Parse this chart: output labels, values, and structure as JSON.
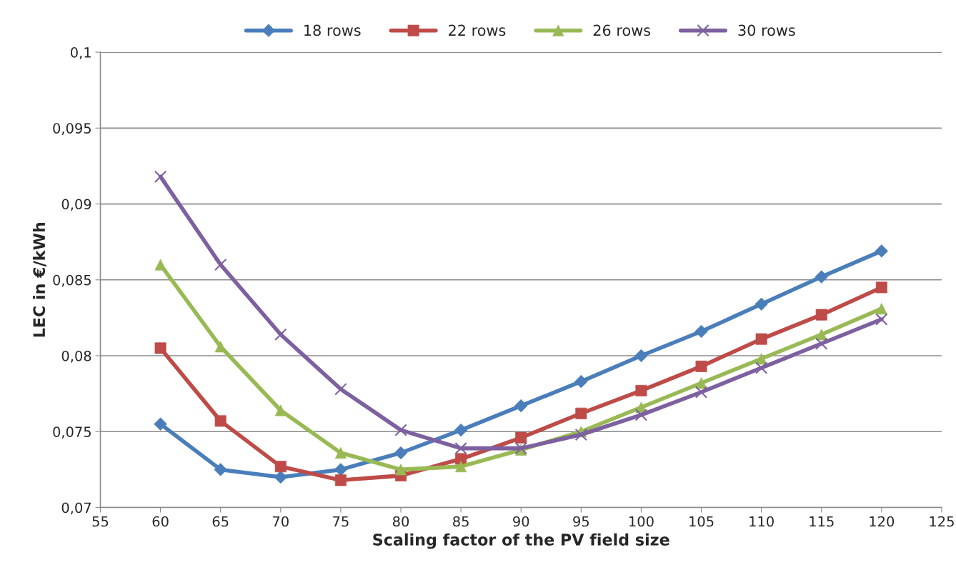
{
  "chart_data": {
    "type": "line",
    "xlabel": "Scaling factor of the PV field size",
    "ylabel": "LEC in €/kWh",
    "x": [
      60,
      65,
      70,
      75,
      80,
      85,
      90,
      95,
      100,
      105,
      110,
      115,
      120
    ],
    "series": [
      {
        "name": "18 rows",
        "color": "#4a7ebb",
        "marker": "diamond",
        "values": [
          0.0755,
          0.0725,
          0.072,
          0.0725,
          0.0736,
          0.0751,
          0.0767,
          0.0783,
          0.08,
          0.0816,
          0.0834,
          0.0852,
          0.0869
        ]
      },
      {
        "name": "22 rows",
        "color": "#be4b48",
        "marker": "square",
        "values": [
          0.0805,
          0.0757,
          0.0727,
          0.0718,
          0.0721,
          0.0732,
          0.0746,
          0.0762,
          0.0777,
          0.0793,
          0.0811,
          0.0827,
          0.0845
        ]
      },
      {
        "name": "26 rows",
        "color": "#98b954",
        "marker": "triangle",
        "values": [
          0.086,
          0.0806,
          0.0764,
          0.0736,
          0.0725,
          0.0727,
          0.0738,
          0.075,
          0.0766,
          0.0782,
          0.0798,
          0.0814,
          0.0831
        ]
      },
      {
        "name": "30 rows",
        "color": "#7d60a0",
        "marker": "cross",
        "values": [
          0.0918,
          0.086,
          0.0814,
          0.0778,
          0.0751,
          0.0739,
          0.0739,
          0.0748,
          0.0761,
          0.0776,
          0.0792,
          0.0808,
          0.0824
        ]
      }
    ],
    "xlim": [
      55,
      125
    ],
    "xticks": [
      55,
      60,
      65,
      70,
      75,
      80,
      85,
      90,
      95,
      100,
      105,
      110,
      115,
      120,
      125
    ],
    "ylim": [
      0.07,
      0.1
    ],
    "yticks": [
      {
        "value": 0.07,
        "label": "0,07"
      },
      {
        "value": 0.075,
        "label": "0,075"
      },
      {
        "value": 0.08,
        "label": "0,08"
      },
      {
        "value": 0.085,
        "label": "0,085"
      },
      {
        "value": 0.09,
        "label": "0,09"
      },
      {
        "value": 0.095,
        "label": "0,095"
      },
      {
        "value": 0.1,
        "label": "0,1"
      }
    ],
    "grid": "y",
    "legend": "top",
    "line_style": "solid"
  }
}
